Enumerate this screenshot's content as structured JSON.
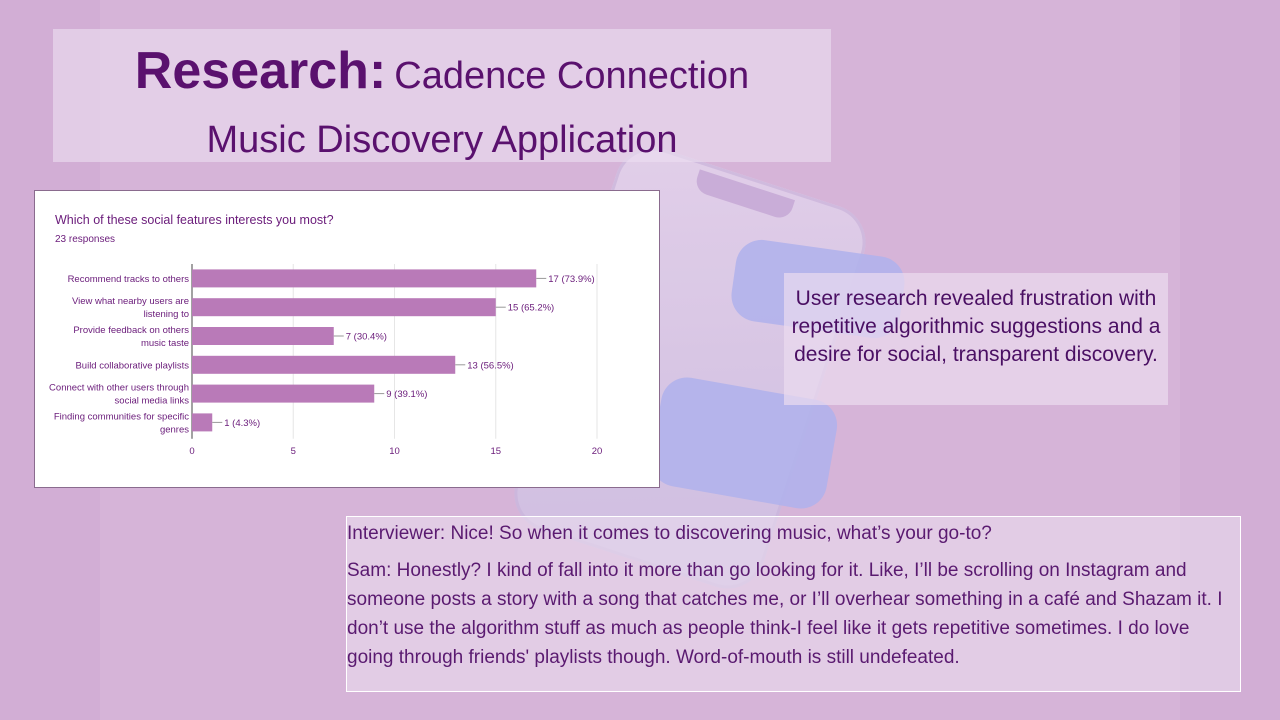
{
  "title": {
    "bold": "Research:",
    "rest": "Cadence Connection",
    "line2": "Music Discovery Application"
  },
  "chart_data": {
    "type": "bar",
    "orientation": "horizontal",
    "title": "Which of these social features interests you most?",
    "subtitle": "23 responses",
    "categories": [
      [
        "Recommend tracks to others"
      ],
      [
        "View what nearby users are",
        "listening to"
      ],
      [
        "Provide feedback on others",
        "music taste"
      ],
      [
        "Build collaborative playlists"
      ],
      [
        "Connect with other users through",
        "social media links"
      ],
      [
        "Finding communities for specific",
        "genres"
      ]
    ],
    "values": [
      17,
      15,
      7,
      13,
      9,
      1
    ],
    "data_labels": [
      "17 (73.9%)",
      "15 (65.2%)",
      "7 (30.4%)",
      "13 (56.5%)",
      "9 (39.1%)",
      "1 (4.3%)"
    ],
    "xlim": [
      0,
      20
    ],
    "xticks": [
      0,
      5,
      10,
      15,
      20
    ],
    "bar_color": "#b97ab8",
    "grid": true
  },
  "summary": "User research revealed frustration with repetitive algorithmic suggestions and a desire for social, transparent discovery.",
  "interview": {
    "q": "Interviewer: Nice! So when it comes to discovering music, what’s your go-to?",
    "a": "Sam: Honestly? I kind of fall into it more than go looking for it. Like, I’ll be scrolling on Instagram and someone posts a story with a song that catches me, or I’ll overhear something in a café and Shazam it. I don’t use the algorithm stuff as much as people think-I feel like it gets repetitive sometimes. I do love going through friends' playlists though. Word-of-mouth is still undefeated."
  }
}
